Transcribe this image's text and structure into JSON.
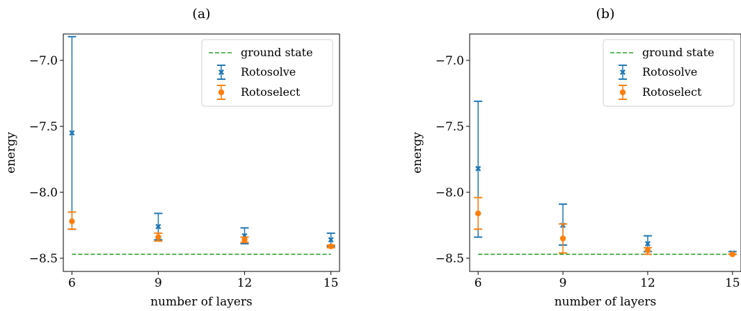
{
  "chart_data": [
    {
      "type": "scatter",
      "title": "(a)",
      "xlabel": "number of layers",
      "ylabel": "energy",
      "x": [
        6,
        9,
        12,
        15
      ],
      "xticks": [
        "6",
        "9",
        "12",
        "15"
      ],
      "yticks": [
        {
          "value": -7.0,
          "label": "−7.0"
        },
        {
          "value": -7.5,
          "label": "−7.5"
        },
        {
          "value": -8.0,
          "label": "−8.0"
        },
        {
          "value": -8.5,
          "label": "−8.5"
        }
      ],
      "xlim": [
        5.7,
        15.3
      ],
      "ylim": [
        -8.6,
        -6.8
      ],
      "ground_state": -8.47,
      "series": [
        {
          "name": "Rotosolve",
          "marker": "x",
          "color": "#1f77b4",
          "values": [
            -7.55,
            -8.26,
            -8.33,
            -8.36
          ],
          "err_low": [
            -8.28,
            -8.36,
            -8.39,
            -8.41
          ],
          "err_high": [
            -6.82,
            -8.16,
            -8.27,
            -8.31
          ]
        },
        {
          "name": "Rotoselect",
          "marker": "o",
          "color": "#ff7f0e",
          "values": [
            -8.22,
            -8.34,
            -8.36,
            -8.41
          ],
          "err_low": [
            -8.28,
            -8.37,
            -8.38,
            -8.42
          ],
          "err_high": [
            -8.15,
            -8.31,
            -8.34,
            -8.4
          ]
        }
      ],
      "legend": {
        "entries": [
          "ground state",
          "Rotosolve",
          "Rotoselect"
        ],
        "placement": "top-right"
      }
    },
    {
      "type": "scatter",
      "title": "(b)",
      "xlabel": "number of layers",
      "ylabel": "energy",
      "x": [
        6,
        9,
        12,
        15
      ],
      "xticks": [
        "6",
        "9",
        "12",
        "15"
      ],
      "yticks": [
        {
          "value": -7.0,
          "label": "−7.0"
        },
        {
          "value": -7.5,
          "label": "−7.5"
        },
        {
          "value": -8.0,
          "label": "−8.0"
        },
        {
          "value": -8.5,
          "label": "−8.5"
        }
      ],
      "xlim": [
        5.7,
        15.3
      ],
      "ylim": [
        -8.6,
        -6.8
      ],
      "ground_state": -8.47,
      "series": [
        {
          "name": "Rotosolve",
          "marker": "x",
          "color": "#1f77b4",
          "values": [
            -7.82,
            -8.25,
            -8.39,
            -8.46
          ],
          "err_low": [
            -8.34,
            -8.4,
            -8.45,
            -8.47
          ],
          "err_high": [
            -7.31,
            -8.09,
            -8.33,
            -8.45
          ]
        },
        {
          "name": "Rotoselect",
          "marker": "o",
          "color": "#ff7f0e",
          "values": [
            -8.16,
            -8.35,
            -8.44,
            -8.47
          ],
          "err_low": [
            -8.28,
            -8.46,
            -8.47,
            -8.47
          ],
          "err_high": [
            -8.04,
            -8.24,
            -8.42,
            -8.47
          ]
        }
      ],
      "legend": {
        "entries": [
          "ground state",
          "Rotosolve",
          "Rotoselect"
        ],
        "placement": "top-right"
      }
    }
  ],
  "colors": {
    "ground_state": "#2ca02c",
    "rotosolve": "#1f77b4",
    "rotoselect": "#ff7f0e"
  }
}
